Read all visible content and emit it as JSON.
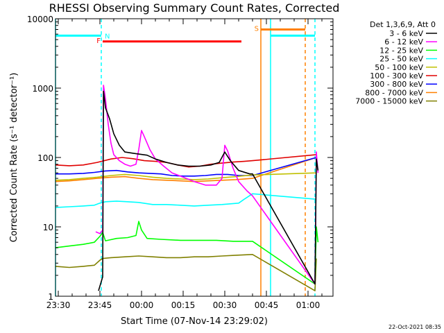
{
  "chart_data": {
    "type": "line",
    "title": "RHESSI Observing Summary Count Rates, Corrected",
    "xlabel": "Start Time (07-Nov-14 23:29:02)",
    "ylabel": "Corrected Count Rate (s⁻¹ detector⁻¹)",
    "x_unit": "minutes after 23:29:02",
    "xlim": [
      0,
      100
    ],
    "ylim": [
      1,
      10000
    ],
    "y_scale": "log",
    "grid": false,
    "x_ticks": [
      {
        "t": 1,
        "label": "23:30"
      },
      {
        "t": 16,
        "label": "23:45"
      },
      {
        "t": 31,
        "label": "00:00"
      },
      {
        "t": 46,
        "label": "00:15"
      },
      {
        "t": 61,
        "label": "00:30"
      },
      {
        "t": 76,
        "label": "00:45"
      },
      {
        "t": 91,
        "label": "01:00"
      }
    ],
    "y_ticks": [
      {
        "v": 1,
        "label": "1"
      },
      {
        "v": 10,
        "label": "10"
      },
      {
        "v": 100,
        "label": "100"
      },
      {
        "v": 1000,
        "label": "1000"
      },
      {
        "v": 10000,
        "label": "10000"
      }
    ],
    "legend_header": "Det 1,3,6,9, Att 0",
    "legend_position": "right",
    "series": [
      {
        "name": "3 - 6 keV",
        "color": "#000000",
        "points": [
          [
            15.5,
            1.2
          ],
          [
            17,
            1.9
          ],
          [
            17.3,
            900
          ],
          [
            18,
            520
          ],
          [
            19.5,
            360
          ],
          [
            21,
            220
          ],
          [
            23,
            150
          ],
          [
            25,
            120
          ],
          [
            28,
            115
          ],
          [
            30,
            112
          ],
          [
            33,
            108
          ],
          [
            36,
            95
          ],
          [
            40,
            85
          ],
          [
            44,
            78
          ],
          [
            48,
            75
          ],
          [
            52,
            75
          ],
          [
            56,
            78
          ],
          [
            59,
            85
          ],
          [
            61,
            120
          ],
          [
            63,
            90
          ],
          [
            66,
            65
          ],
          [
            70,
            58
          ],
          [
            71,
            58
          ],
          [
            93.5,
            1.5
          ],
          [
            94,
            95
          ],
          [
            94.6,
            65
          ]
        ]
      },
      {
        "name": "6 - 12 keV",
        "color": "#ff00ff",
        "points": [
          [
            14.5,
            8.5
          ],
          [
            16,
            8
          ],
          [
            17,
            9
          ],
          [
            17.3,
            1100
          ],
          [
            18,
            700
          ],
          [
            19,
            300
          ],
          [
            20,
            160
          ],
          [
            21,
            110
          ],
          [
            23,
            90
          ],
          [
            25,
            80
          ],
          [
            27,
            75
          ],
          [
            29,
            80
          ],
          [
            30,
            130
          ],
          [
            31,
            245
          ],
          [
            32,
            200
          ],
          [
            34,
            130
          ],
          [
            36,
            95
          ],
          [
            39,
            75
          ],
          [
            42,
            60
          ],
          [
            46,
            52
          ],
          [
            50,
            45
          ],
          [
            54,
            40
          ],
          [
            58,
            40
          ],
          [
            60,
            50
          ],
          [
            61,
            150
          ],
          [
            62,
            125
          ],
          [
            64,
            70
          ],
          [
            66,
            45
          ],
          [
            69,
            33
          ],
          [
            71,
            28
          ],
          [
            93.5,
            1.5
          ],
          [
            94,
            120
          ],
          [
            94.6,
            60
          ]
        ]
      },
      {
        "name": "12 - 25 keV",
        "color": "#00ff00",
        "points": [
          [
            0,
            5
          ],
          [
            5,
            5.3
          ],
          [
            10,
            5.6
          ],
          [
            14,
            6
          ],
          [
            16,
            7.3
          ],
          [
            17,
            8.3
          ],
          [
            18,
            6.3
          ],
          [
            22,
            6.8
          ],
          [
            26,
            7
          ],
          [
            29,
            7.5
          ],
          [
            30,
            12
          ],
          [
            31,
            9
          ],
          [
            33,
            6.8
          ],
          [
            38,
            6.6
          ],
          [
            45,
            6.4
          ],
          [
            52,
            6.4
          ],
          [
            58,
            6.4
          ],
          [
            64,
            6.2
          ],
          [
            71,
            6.2
          ],
          [
            93.5,
            1.5
          ],
          [
            94,
            10
          ],
          [
            94.6,
            6
          ]
        ]
      },
      {
        "name": "25 - 50 keV",
        "color": "#00ffff",
        "points": [
          [
            0,
            19
          ],
          [
            5,
            19.5
          ],
          [
            10,
            20
          ],
          [
            14,
            20.5
          ],
          [
            16,
            22
          ],
          [
            18,
            23
          ],
          [
            22,
            23.5
          ],
          [
            26,
            23
          ],
          [
            30,
            22.5
          ],
          [
            35,
            21
          ],
          [
            40,
            21
          ],
          [
            45,
            20.5
          ],
          [
            50,
            20
          ],
          [
            55,
            20.5
          ],
          [
            60,
            21
          ],
          [
            63,
            21.5
          ],
          [
            66,
            22
          ],
          [
            68,
            25
          ],
          [
            71,
            30
          ],
          [
            94,
            25
          ]
        ]
      },
      {
        "name": "50 - 100 keV",
        "color": "#c0c000",
        "points": [
          [
            0,
            47
          ],
          [
            5,
            48
          ],
          [
            10,
            50
          ],
          [
            15,
            52
          ],
          [
            20,
            55
          ],
          [
            25,
            57
          ],
          [
            30,
            55
          ],
          [
            35,
            52
          ],
          [
            40,
            50
          ],
          [
            45,
            49
          ],
          [
            50,
            48
          ],
          [
            55,
            49
          ],
          [
            60,
            51
          ],
          [
            65,
            53
          ],
          [
            71,
            56
          ],
          [
            94,
            60
          ]
        ]
      },
      {
        "name": "100 - 300 keV",
        "color": "#e00000",
        "points": [
          [
            0,
            78
          ],
          [
            5,
            76
          ],
          [
            10,
            78
          ],
          [
            15,
            85
          ],
          [
            20,
            95
          ],
          [
            24,
            100
          ],
          [
            28,
            96
          ],
          [
            32,
            90
          ],
          [
            36,
            88
          ],
          [
            40,
            85
          ],
          [
            44,
            78
          ],
          [
            48,
            73
          ],
          [
            52,
            75
          ],
          [
            56,
            80
          ],
          [
            60,
            83
          ],
          [
            64,
            86
          ],
          [
            68,
            88
          ],
          [
            71,
            90
          ],
          [
            94,
            110
          ]
        ]
      },
      {
        "name": "300 - 800 keV",
        "color": "#0000ff",
        "points": [
          [
            0,
            58
          ],
          [
            5,
            58
          ],
          [
            10,
            59
          ],
          [
            14,
            61
          ],
          [
            18,
            64
          ],
          [
            22,
            65
          ],
          [
            26,
            62
          ],
          [
            30,
            60
          ],
          [
            34,
            59
          ],
          [
            38,
            58
          ],
          [
            42,
            55
          ],
          [
            46,
            54
          ],
          [
            50,
            54
          ],
          [
            54,
            55
          ],
          [
            58,
            57
          ],
          [
            62,
            57
          ],
          [
            66,
            55
          ],
          [
            71,
            55
          ],
          [
            94,
            100
          ]
        ]
      },
      {
        "name": "800 - 7000 keV",
        "color": "#ff8000",
        "points": [
          [
            0,
            45
          ],
          [
            5,
            46
          ],
          [
            10,
            48
          ],
          [
            15,
            50
          ],
          [
            20,
            52
          ],
          [
            25,
            53
          ],
          [
            30,
            50
          ],
          [
            35,
            48
          ],
          [
            40,
            47
          ],
          [
            45,
            46
          ],
          [
            50,
            45
          ],
          [
            55,
            46
          ],
          [
            60,
            47
          ],
          [
            65,
            48
          ],
          [
            71,
            50
          ],
          [
            94,
            100
          ]
        ]
      },
      {
        "name": "7000 - 15000 keV",
        "color": "#808000",
        "points": [
          [
            0,
            2.7
          ],
          [
            5,
            2.6
          ],
          [
            10,
            2.7
          ],
          [
            14,
            2.8
          ],
          [
            16,
            3.3
          ],
          [
            17,
            3.5
          ],
          [
            20,
            3.6
          ],
          [
            25,
            3.7
          ],
          [
            30,
            3.8
          ],
          [
            35,
            3.7
          ],
          [
            40,
            3.6
          ],
          [
            45,
            3.6
          ],
          [
            50,
            3.7
          ],
          [
            55,
            3.7
          ],
          [
            60,
            3.8
          ],
          [
            65,
            3.9
          ],
          [
            71,
            4
          ],
          [
            93.5,
            1.2
          ],
          [
            94,
            3.5
          ]
        ]
      }
    ],
    "annotations": [
      {
        "type": "flag_bar",
        "label": "N",
        "color": "#00ffff",
        "t_start": 0,
        "t_end": 16.5,
        "y": 5700
      },
      {
        "type": "flag_bar",
        "label": "F",
        "color": "#ff0000",
        "t_start": 17,
        "t_end": 67,
        "y": 4700
      },
      {
        "type": "flag_bar",
        "label": "S",
        "color": "#ff8000",
        "t_start": 74,
        "t_end": 90,
        "y": 7000
      },
      {
        "type": "flag_bar",
        "label": "",
        "color": "#00ffff",
        "t_start": 77.5,
        "t_end": 93.5,
        "y": 5700
      },
      {
        "type": "vline",
        "color": "#00ffff",
        "t": 0,
        "style": "solid"
      },
      {
        "type": "vline",
        "color": "#00ffff",
        "t": 16.5,
        "style": "dashed"
      },
      {
        "type": "vline",
        "color": "#ff8000",
        "t": 74,
        "style": "solid"
      },
      {
        "type": "vline",
        "color": "#ff8000",
        "t": 90,
        "style": "dashed"
      },
      {
        "type": "vline",
        "color": "#00ffff",
        "t": 77.5,
        "style": "solid"
      },
      {
        "type": "vline",
        "color": "#00ffff",
        "t": 93.5,
        "style": "dashed"
      }
    ]
  },
  "footer_date": "22-Oct-2021 08:35"
}
